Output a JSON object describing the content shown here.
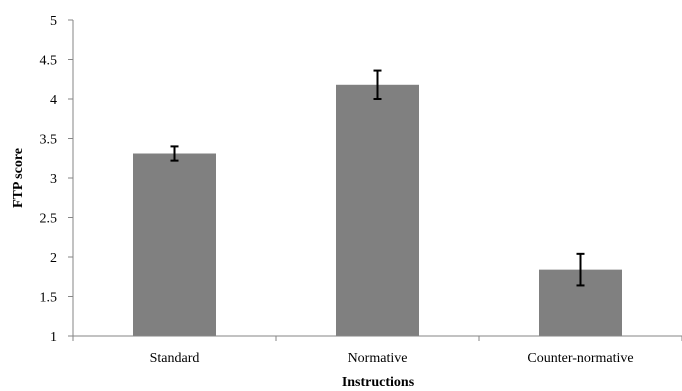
{
  "chart_data": {
    "type": "bar",
    "title": "",
    "xlabel": "Instructions",
    "ylabel": "FTP score",
    "ylim": [
      1,
      5
    ],
    "yticks": [
      "1",
      "1.5",
      "2",
      "2.5",
      "3",
      "3.5",
      "4",
      "4.5",
      "5"
    ],
    "categories": [
      "Standard",
      "Normative",
      "Counter-normative"
    ],
    "values": [
      3.31,
      4.18,
      1.84
    ],
    "error_low": [
      3.22,
      4.0,
      1.64
    ],
    "error_high": [
      3.4,
      4.36,
      2.04
    ],
    "grid": false,
    "legend": "none",
    "colors": {
      "bar": "#808080",
      "axis": "#868686",
      "errorbar": "#000000"
    }
  }
}
